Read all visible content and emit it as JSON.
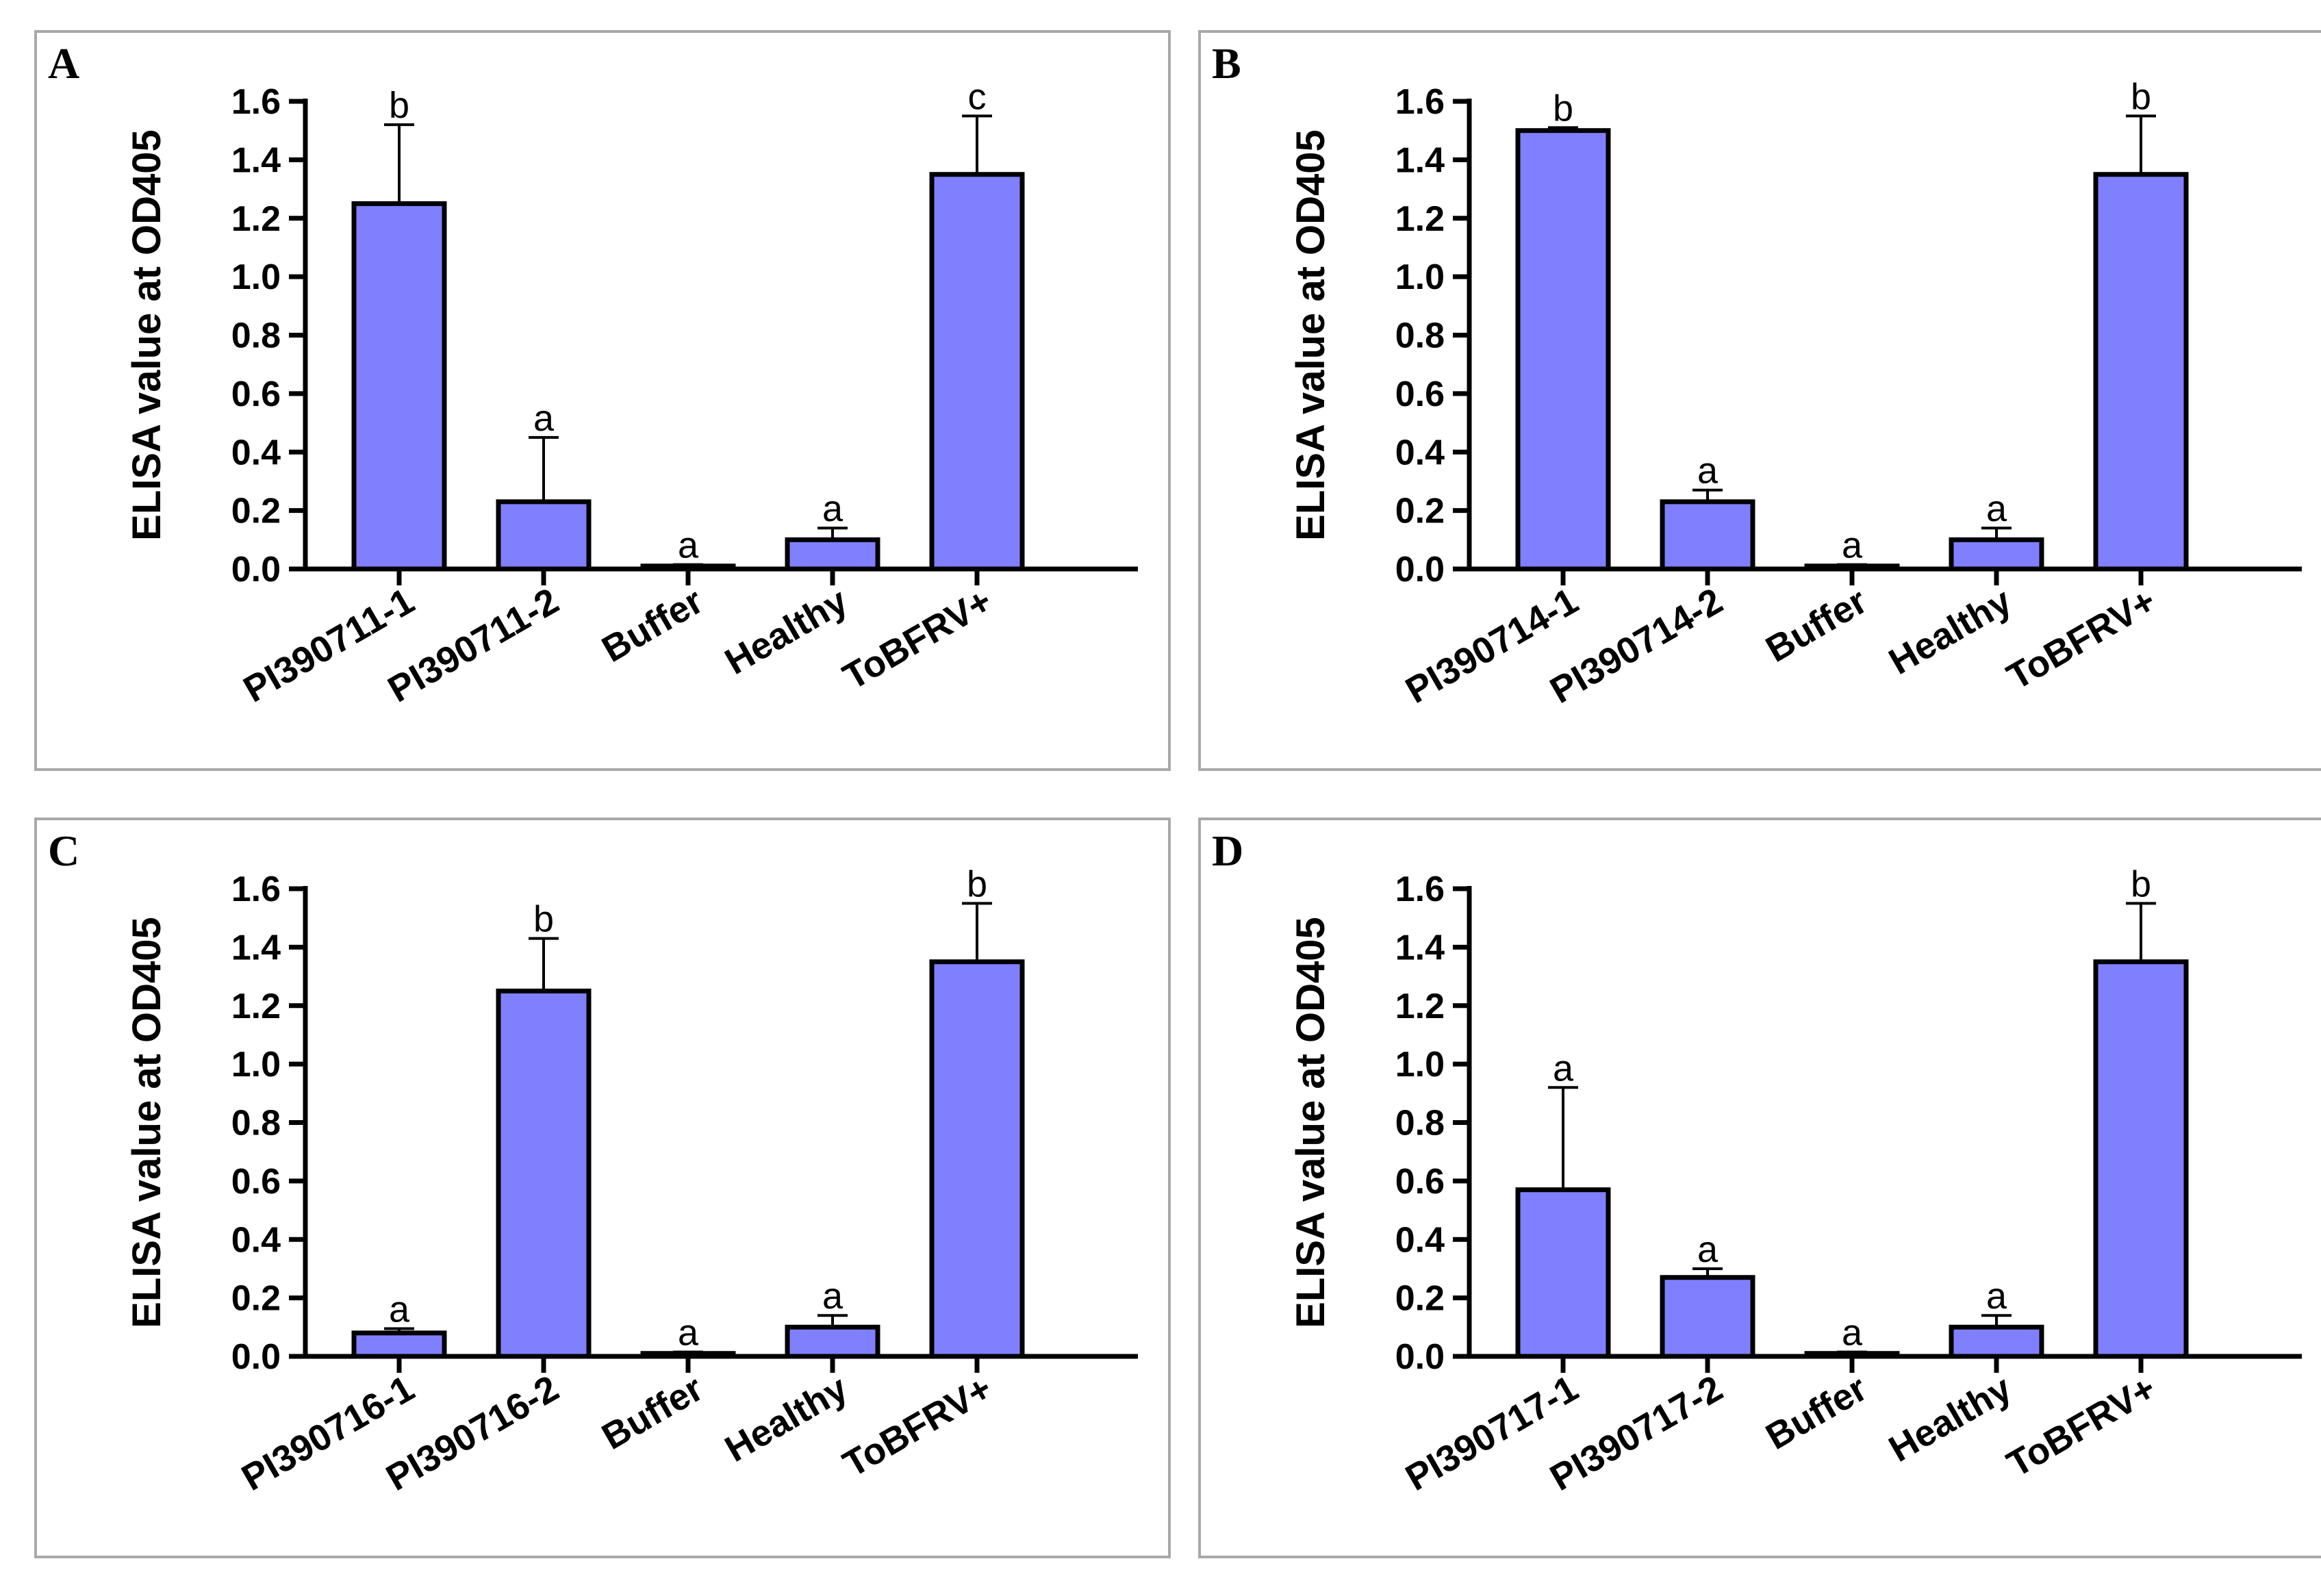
{
  "chart_data": [
    {
      "panel": "A",
      "type": "bar",
      "ylabel": "ELISA value at OD405",
      "ylim": [
        0,
        1.6
      ],
      "yticks": [
        "0.0",
        "0.2",
        "0.4",
        "0.6",
        "0.8",
        "1.0",
        "1.2",
        "1.4",
        "1.6"
      ],
      "categories": [
        "PI390711-1",
        "PI390711-2",
        "Buffer",
        "Healthy",
        "ToBFRV+"
      ],
      "values": [
        1.25,
        0.23,
        0.01,
        0.1,
        1.35
      ],
      "errors": [
        0.27,
        0.22,
        0.005,
        0.04,
        0.2
      ],
      "significance": [
        "b",
        "a",
        "a",
        "a",
        "c"
      ],
      "bar_color": "#8080ff"
    },
    {
      "panel": "B",
      "type": "bar",
      "ylabel": "ELISA value at OD405",
      "ylim": [
        0,
        1.6
      ],
      "yticks": [
        "0.0",
        "0.2",
        "0.4",
        "0.6",
        "0.8",
        "1.0",
        "1.2",
        "1.4",
        "1.6"
      ],
      "categories": [
        "PI390714-1",
        "PI390714-2",
        "Buffer",
        "Healthy",
        "ToBFRV+"
      ],
      "values": [
        1.5,
        0.23,
        0.01,
        0.1,
        1.35
      ],
      "errors": [
        0.01,
        0.04,
        0.005,
        0.04,
        0.2
      ],
      "significance": [
        "b",
        "a",
        "a",
        "a",
        "b"
      ],
      "bar_color": "#8080ff"
    },
    {
      "panel": "C",
      "type": "bar",
      "ylabel": "ELISA value at OD405",
      "ylim": [
        0,
        1.6
      ],
      "yticks": [
        "0.0",
        "0.2",
        "0.4",
        "0.6",
        "0.8",
        "1.0",
        "1.2",
        "1.4",
        "1.6"
      ],
      "categories": [
        "PI390716-1",
        "PI390716-2",
        "Buffer",
        "Healthy",
        "ToBFRV+"
      ],
      "values": [
        0.08,
        1.25,
        0.01,
        0.1,
        1.35
      ],
      "errors": [
        0.015,
        0.18,
        0.005,
        0.04,
        0.2
      ],
      "significance": [
        "a",
        "b",
        "a",
        "a",
        "b"
      ],
      "bar_color": "#8080ff"
    },
    {
      "panel": "D",
      "type": "bar",
      "ylabel": "ELISA value at OD405",
      "ylim": [
        0,
        1.6
      ],
      "yticks": [
        "0.0",
        "0.2",
        "0.4",
        "0.6",
        "0.8",
        "1.0",
        "1.2",
        "1.4",
        "1.6"
      ],
      "categories": [
        "PI390717-1",
        "PI390717-2",
        "Buffer",
        "Healthy",
        "ToBFRV+"
      ],
      "values": [
        0.57,
        0.27,
        0.01,
        0.1,
        1.35
      ],
      "errors": [
        0.35,
        0.03,
        0.005,
        0.04,
        0.2
      ],
      "significance": [
        "a",
        "a",
        "a",
        "a",
        "b"
      ],
      "bar_color": "#8080ff"
    }
  ]
}
